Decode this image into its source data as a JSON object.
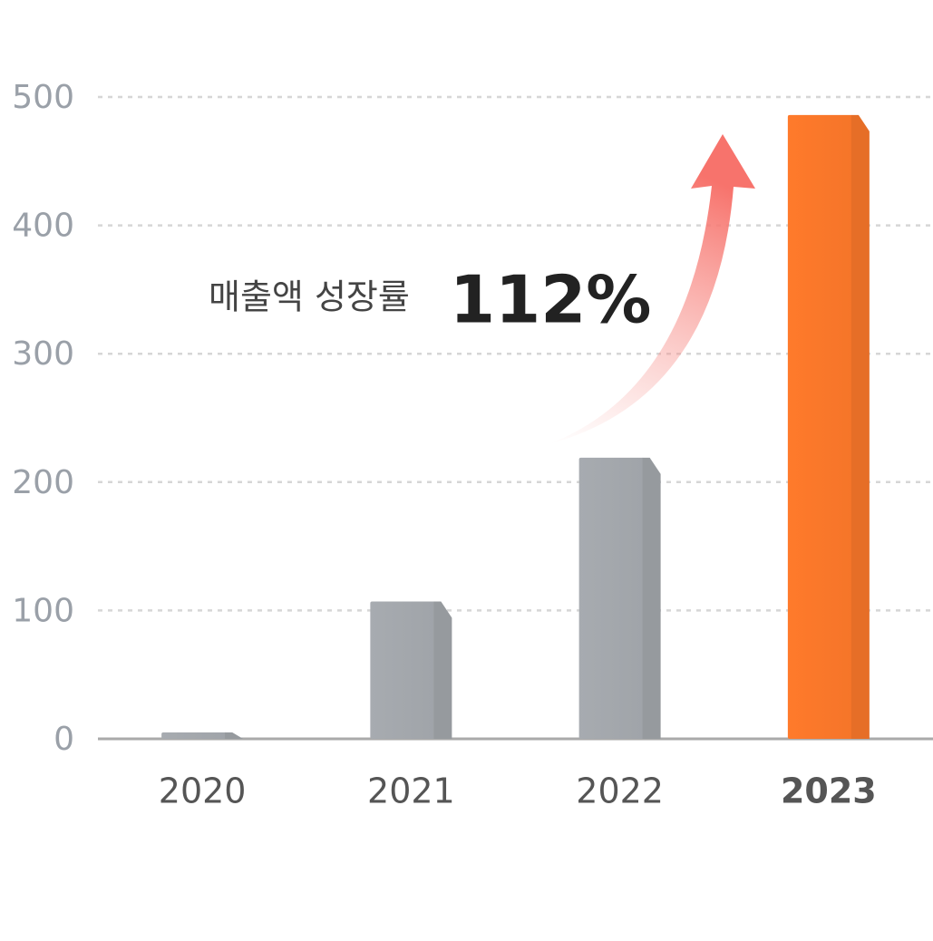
{
  "chart_data": {
    "type": "bar",
    "categories": [
      "2020",
      "2021",
      "2022",
      "2023"
    ],
    "values": [
      5,
      107,
      219,
      486
    ],
    "colors": [
      "#a7abb0",
      "#a7abb0",
      "#a7abb0",
      "#ff7a2b"
    ],
    "ylim": [
      0,
      500
    ],
    "yticks": [
      0,
      100,
      200,
      300,
      400,
      500
    ],
    "grid": true,
    "annotation": {
      "label": "매출액 성장률",
      "value": "112%"
    }
  }
}
